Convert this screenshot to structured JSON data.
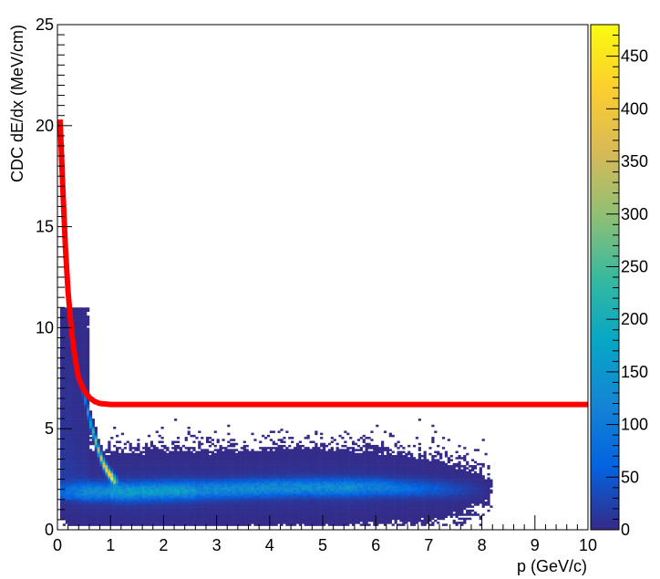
{
  "chart_data": {
    "type": "heatmap",
    "title": "",
    "xlabel": "p (GeV/c)",
    "ylabel": "CDC dE/dx (MeV/cm)",
    "xlim": [
      0,
      10
    ],
    "ylim": [
      0,
      25
    ],
    "x_ticks": [
      "0",
      "1",
      "2",
      "3",
      "4",
      "5",
      "6",
      "7",
      "8",
      "9",
      "10"
    ],
    "y_ticks": [
      "0",
      "5",
      "10",
      "15",
      "20",
      "25"
    ],
    "colorbar": {
      "range": [
        0,
        480
      ],
      "ticks": [
        "0",
        "50",
        "100",
        "150",
        "200",
        "250",
        "300",
        "350",
        "400",
        "450"
      ],
      "palette": [
        "#352a87",
        "#0363e1",
        "#1485d4",
        "#06a7c6",
        "#38b99e",
        "#92bf73",
        "#d9ba56",
        "#fcce2e",
        "#f9fb0e"
      ]
    },
    "density_features": [
      {
        "feature": "band",
        "points": [
          [
            0.5,
            6.8
          ],
          [
            0.6,
            5.5
          ],
          [
            0.7,
            4.6
          ],
          [
            0.8,
            3.7
          ],
          [
            0.9,
            3.1
          ],
          [
            1.0,
            2.7
          ],
          [
            1.1,
            2.4
          ]
        ],
        "peak": 460
      },
      {
        "feature": "band",
        "points": [
          [
            0.1,
            1.9
          ],
          [
            1.5,
            1.9
          ],
          [
            3.0,
            2.0
          ],
          [
            4.5,
            2.1
          ],
          [
            6.0,
            2.1
          ],
          [
            7.5,
            2.0
          ]
        ],
        "peak": 120
      },
      {
        "feature": "cloud",
        "x_range": [
          0.05,
          0.6
        ],
        "y_range": [
          1.5,
          11
        ],
        "peak": 20
      }
    ],
    "series": [
      {
        "type": "line",
        "color": "#ff0000",
        "points": [
          [
            0.05,
            20.3
          ],
          [
            0.1,
            17.0
          ],
          [
            0.15,
            14.0
          ],
          [
            0.2,
            11.8
          ],
          [
            0.25,
            10.3
          ],
          [
            0.3,
            9.1
          ],
          [
            0.35,
            8.2
          ],
          [
            0.4,
            7.5
          ],
          [
            0.5,
            6.9
          ],
          [
            0.6,
            6.55
          ],
          [
            0.7,
            6.35
          ],
          [
            0.8,
            6.25
          ],
          [
            1.0,
            6.2
          ],
          [
            2.0,
            6.2
          ],
          [
            5.0,
            6.2
          ],
          [
            10.0,
            6.2
          ]
        ]
      }
    ]
  }
}
